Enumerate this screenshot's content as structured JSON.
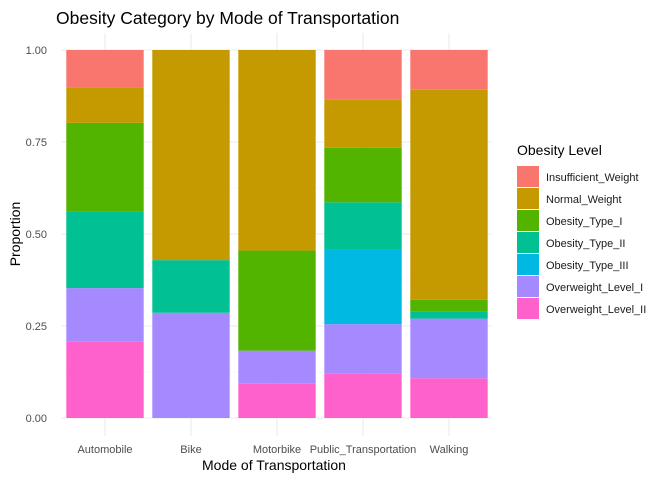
{
  "chart_data": {
    "type": "bar",
    "stacked": true,
    "title": "Obesity Category by Mode of Transportation",
    "xlabel": "Mode of Transportation",
    "ylabel": "Proportion",
    "ylim": [
      0,
      1
    ],
    "yticks": [
      "0.00",
      "0.25",
      "0.50",
      "0.75",
      "1.00"
    ],
    "grid": true,
    "legend_position": "right",
    "categories": [
      "Automobile",
      "Bike",
      "Motorbike",
      "Public_Transportation",
      "Walking"
    ],
    "series": [
      {
        "name": "Overweight_Level_II",
        "color": "#FF61CC",
        "values": [
          0.207,
          0.0,
          0.093,
          0.12,
          0.108
        ]
      },
      {
        "name": "Overweight_Level_I",
        "color": "#A58AFF",
        "values": [
          0.146,
          0.286,
          0.09,
          0.135,
          0.162
        ]
      },
      {
        "name": "Obesity_Type_III",
        "color": "#00B9E3",
        "values": [
          0.0,
          0.0,
          0.0,
          0.203,
          0.0
        ]
      },
      {
        "name": "Obesity_Type_II",
        "color": "#00C094",
        "values": [
          0.207,
          0.143,
          0.0,
          0.128,
          0.019
        ]
      },
      {
        "name": "Obesity_Type_I",
        "color": "#53B400",
        "values": [
          0.242,
          0.0,
          0.272,
          0.148,
          0.032
        ]
      },
      {
        "name": "Normal_Weight",
        "color": "#C49A00",
        "values": [
          0.097,
          0.571,
          0.545,
          0.131,
          0.571
        ]
      },
      {
        "name": "Insufficient_Weight",
        "color": "#F8766D",
        "values": [
          0.101,
          0.0,
          0.0,
          0.135,
          0.108
        ]
      }
    ],
    "legend": {
      "title": "Obesity Level",
      "items": [
        {
          "label": "Insufficient_Weight",
          "color": "#F8766D"
        },
        {
          "label": "Normal_Weight",
          "color": "#C49A00"
        },
        {
          "label": "Obesity_Type_I",
          "color": "#53B400"
        },
        {
          "label": "Obesity_Type_II",
          "color": "#00C094"
        },
        {
          "label": "Obesity_Type_III",
          "color": "#00B9E3"
        },
        {
          "label": "Overweight_Level_I",
          "color": "#A58AFF"
        },
        {
          "label": "Overweight_Level_II",
          "color": "#FF61CC"
        }
      ]
    }
  }
}
